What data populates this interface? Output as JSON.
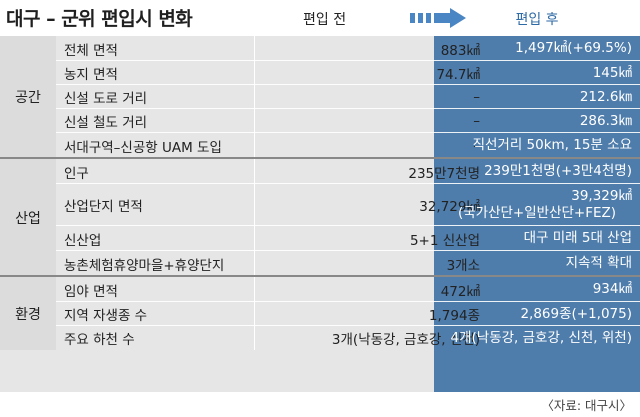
{
  "title": "대구 – 군위 편입시 변화",
  "header": {
    "before": "편입 전",
    "after": "편입 후"
  },
  "groups": [
    {
      "label": "공간",
      "rows": [
        {
          "name": "전체 면적",
          "before": "883㎢",
          "after": [
            "1,497㎢(+69.5%)"
          ]
        },
        {
          "name": "농지 면적",
          "before": "74.7㎢",
          "after": [
            "145㎢"
          ]
        },
        {
          "name": "신설 도로 거리",
          "before": "–",
          "after": [
            "212.6㎞"
          ]
        },
        {
          "name": "신설 철도 거리",
          "before": "–",
          "after": [
            "286.3㎞"
          ]
        },
        {
          "name": "서대구역–신공항 UAM 도입",
          "before": "–",
          "after": [
            "직선거리 50km, 15분 소요"
          ]
        }
      ]
    },
    {
      "label": "산업",
      "rows": [
        {
          "name": "인구",
          "before": "235만7천명",
          "after": [
            "239만1천명(+3만4천명)"
          ]
        },
        {
          "name": "산업단지 면적",
          "before": "32,729㎢",
          "after": [
            "39,329㎢",
            "(국가산단+일반산단+FEZ)"
          ]
        },
        {
          "name": "신산업",
          "before": "5+1 신산업",
          "after": [
            "대구 미래 5대 산업"
          ]
        },
        {
          "name": "농촌체험휴양마을+휴양단지",
          "before": "3개소",
          "after": [
            "지속적 확대"
          ]
        }
      ]
    },
    {
      "label": "환경",
      "rows": [
        {
          "name": "임야 면적",
          "before": "472㎢",
          "after": [
            "934㎢"
          ]
        },
        {
          "name": "지역 자생종 수",
          "before": "1,794종",
          "after": [
            "2,869종(+1,075)"
          ]
        },
        {
          "name": "주요 하천 수",
          "before": "3개(낙동강, 금호강, 신천)",
          "after": [
            "4개(낙동강, 금호강, 신천, 위천)"
          ]
        }
      ]
    }
  ],
  "source": "〈자료: 대구시〉"
}
